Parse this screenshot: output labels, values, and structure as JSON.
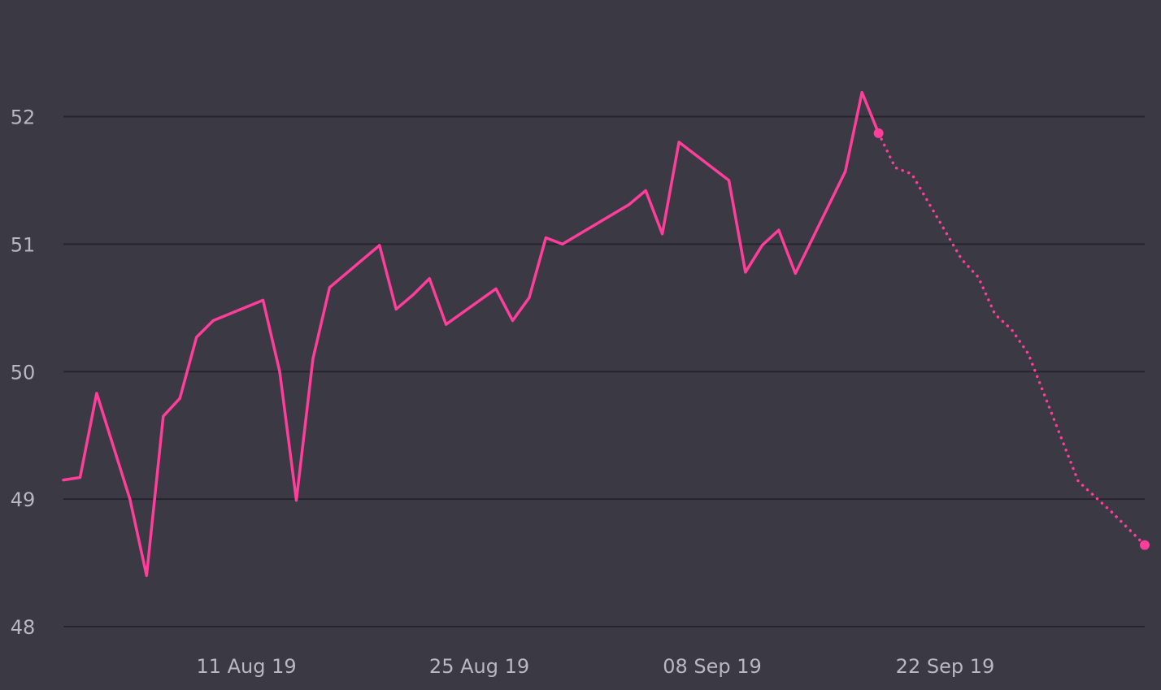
{
  "chart_data": {
    "type": "line",
    "title": "",
    "xlabel": "",
    "ylabel": "",
    "x_range": [
      "2019-07-31",
      "2019-10-04"
    ],
    "ylim": [
      48,
      52.8
    ],
    "y_ticks": [
      48,
      49,
      50,
      51,
      52
    ],
    "x_ticks": [
      {
        "date": "2019-08-11",
        "label": "11 Aug 19"
      },
      {
        "date": "2019-08-25",
        "label": "25 Aug 19"
      },
      {
        "date": "2019-09-08",
        "label": "08 Sep 19"
      },
      {
        "date": "2019-09-22",
        "label": "22 Sep 19"
      }
    ],
    "grid": {
      "horizontal": true,
      "vertical": false
    },
    "color": "#ff3d9a",
    "series": [
      {
        "style": "solid",
        "points": [
          [
            "2019-07-31",
            49.15
          ],
          [
            "2019-08-01",
            49.17
          ],
          [
            "2019-08-02",
            49.83
          ],
          [
            "2019-08-04",
            49.0
          ],
          [
            "2019-08-05",
            48.4
          ],
          [
            "2019-08-06",
            49.65
          ],
          [
            "2019-08-07",
            49.79
          ],
          [
            "2019-08-08",
            50.27
          ],
          [
            "2019-08-09",
            50.4
          ],
          [
            "2019-08-12",
            50.56
          ],
          [
            "2019-08-13",
            50.0
          ],
          [
            "2019-08-14",
            48.99
          ],
          [
            "2019-08-15",
            50.1
          ],
          [
            "2019-08-16",
            50.66
          ],
          [
            "2019-08-19",
            50.99
          ],
          [
            "2019-08-20",
            50.49
          ],
          [
            "2019-08-21",
            50.6
          ],
          [
            "2019-08-22",
            50.73
          ],
          [
            "2019-08-23",
            50.37
          ],
          [
            "2019-08-26",
            50.65
          ],
          [
            "2019-08-27",
            50.4
          ],
          [
            "2019-08-28",
            50.58
          ],
          [
            "2019-08-29",
            51.05
          ],
          [
            "2019-08-30",
            51.0
          ],
          [
            "2019-09-03",
            51.31
          ],
          [
            "2019-09-04",
            51.42
          ],
          [
            "2019-09-05",
            51.08
          ],
          [
            "2019-09-06",
            51.8
          ],
          [
            "2019-09-09",
            51.5
          ],
          [
            "2019-09-10",
            50.78
          ],
          [
            "2019-09-11",
            50.99
          ],
          [
            "2019-09-12",
            51.11
          ],
          [
            "2019-09-13",
            50.77
          ],
          [
            "2019-09-16",
            51.57
          ],
          [
            "2019-09-17",
            52.19
          ],
          [
            "2019-09-18",
            51.87
          ]
        ]
      },
      {
        "style": "dotted",
        "points": [
          [
            "2019-09-18",
            51.87
          ],
          [
            "2019-09-19",
            51.6
          ],
          [
            "2019-09-20",
            51.55
          ],
          [
            "2019-09-23",
            50.88
          ],
          [
            "2019-09-24",
            50.74
          ],
          [
            "2019-09-25",
            50.45
          ],
          [
            "2019-09-26",
            50.33
          ],
          [
            "2019-09-27",
            50.14
          ],
          [
            "2019-09-30",
            49.14
          ],
          [
            "2019-10-02",
            48.9
          ],
          [
            "2019-10-04",
            48.64
          ]
        ]
      }
    ]
  }
}
